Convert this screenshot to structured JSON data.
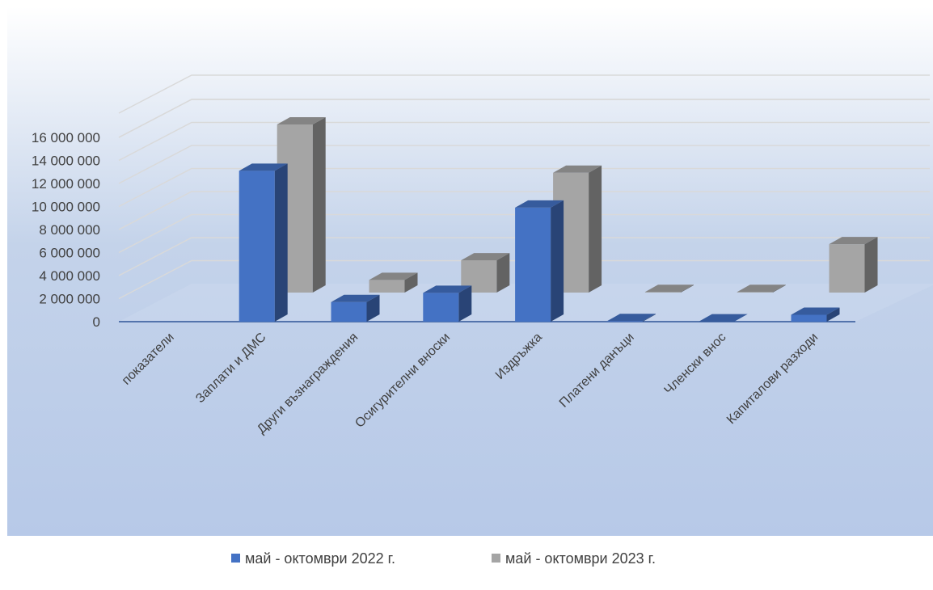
{
  "chart_data": {
    "type": "bar",
    "categories": [
      "показатели",
      "Заплати и ДМС",
      "Други възнаграждения",
      "Осигурителни вноски",
      "Издръжка",
      "Платени данъци",
      "Членски внос",
      "Капиталови разходи"
    ],
    "series": [
      {
        "name": "май - октомври 2022 г.",
        "values": [
          0,
          13100000,
          1700000,
          2500000,
          9900000,
          50000,
          30000,
          600000
        ],
        "color": "#4472C4"
      },
      {
        "name": "май - октомври 2023 г.",
        "values": [
          0,
          14600000,
          1100000,
          2800000,
          10400000,
          50000,
          50000,
          4200000
        ],
        "color": "#A5A5A5"
      }
    ],
    "yticks": [
      "0",
      "2 000 000",
      "4 000 000",
      "6 000 000",
      "8 000 000",
      "10 000 000",
      "12 000 000",
      "14 000 000",
      "16 000 000"
    ],
    "ylim": [
      0,
      16000000
    ],
    "grid": true,
    "legend": "bottom",
    "style": "3d-column"
  }
}
